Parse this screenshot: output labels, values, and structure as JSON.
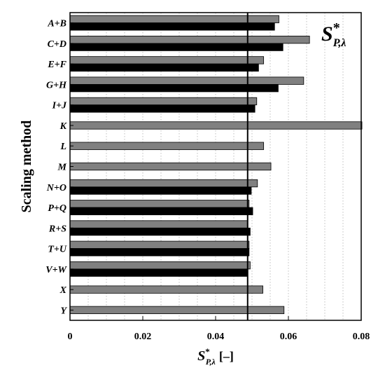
{
  "chart_data": {
    "type": "bar",
    "orientation": "horizontal",
    "categories": [
      "A+B",
      "C+D",
      "E+F",
      "G+H",
      "I+J",
      "K",
      "L",
      "M",
      "N+O",
      "P+Q",
      "R+S",
      "T+U",
      "V+W",
      "X",
      "Y"
    ],
    "series": [
      {
        "color": "#808080",
        "values": [
          0.0574,
          0.0658,
          0.0532,
          0.0642,
          0.0513,
          0.0802,
          0.0532,
          0.0552,
          0.0515,
          0.0492,
          0.0488,
          0.0492,
          0.0495,
          0.053,
          0.0588
        ]
      },
      {
        "color": "#000000",
        "values": [
          0.0562,
          0.0585,
          0.0518,
          0.0572,
          0.0508,
          null,
          null,
          null,
          0.0498,
          0.0502,
          0.0495,
          0.0492,
          0.0488,
          null,
          null
        ]
      }
    ],
    "reference_line": {
      "x": 0.0488,
      "color": "#000000"
    },
    "xlim": [
      0,
      0.08
    ],
    "xticks": [
      "0",
      "0.02",
      "0.04",
      "0.06",
      "0.08"
    ],
    "xlabel": {
      "main": "S",
      "sup": "*",
      "sub": "P,λ",
      "unit": "[–]"
    },
    "ylabel": "Scaling method",
    "annotation": {
      "main": "S",
      "sup": "*",
      "sub": "P,λ"
    },
    "grid": "vertical-dotted"
  }
}
